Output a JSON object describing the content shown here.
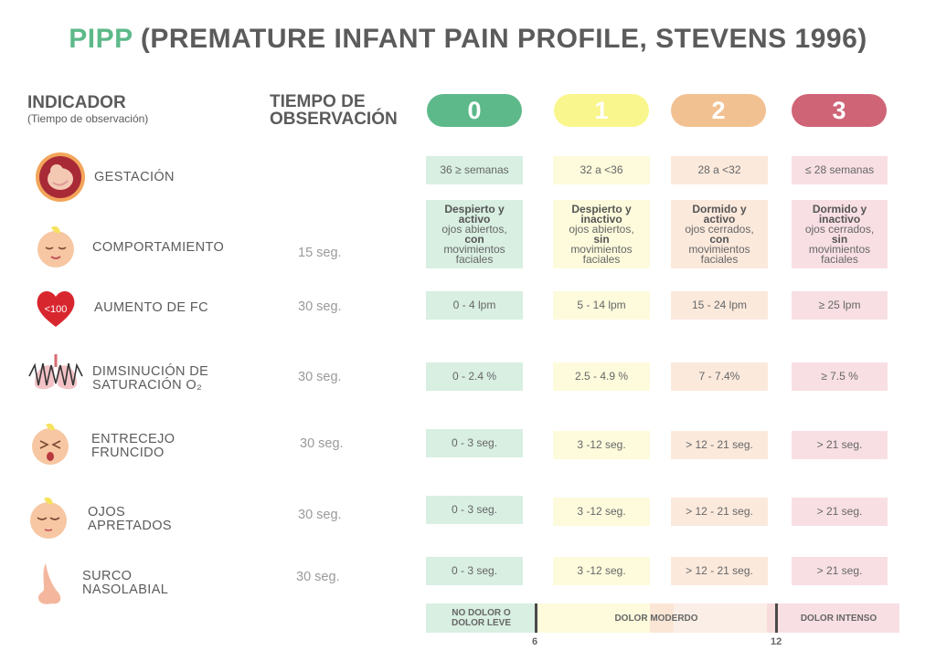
{
  "title": {
    "accent": "PIPP",
    "rest": "(PREMATURE INFANT PAIN PROFILE, STEVENS 1996)"
  },
  "header": {
    "indicator": "INDICADOR",
    "indicator_sub": "(Tiempo de observación)",
    "time_line1": "TIEMPO DE",
    "time_line2": "OBSERVACIÓN",
    "scores": [
      "0",
      "1",
      "2",
      "3"
    ]
  },
  "colors": {
    "score0": "#5db98a",
    "score1": "#f9f68d",
    "score2": "#f2c192",
    "score3": "#cf6477",
    "cell0": "#d8efe2",
    "cell1": "#fdfbdc",
    "cell2": "#fbe9dc",
    "cell3": "#f8dfe4"
  },
  "rows": [
    {
      "icon": "gestation-icon",
      "label1": "GESTACIÓN",
      "label2": "",
      "time": "",
      "cells": [
        "36 ≥ semanas",
        "32 a <36",
        "28 a <32",
        "≤ 28 semanas"
      ]
    },
    {
      "icon": "baby-face-icon",
      "label1": "COMPORTAMIENTO",
      "label2": "",
      "time": "15 seg.",
      "behavior": [
        {
          "b1": "Despierto y",
          "b2": "activo",
          "t1": "ojos abiertos,",
          "k": "con",
          "t2": "movimientos",
          "t3": "faciales"
        },
        {
          "b1": "Despierto y",
          "b2": "inactivo",
          "t1": "ojos abiertos,",
          "k": "sin",
          "t2": "movimientos",
          "t3": "faciales"
        },
        {
          "b1": "Dormido y",
          "b2": "activo",
          "t1": "ojos cerrados,",
          "k": "con",
          "t2": "movimientos",
          "t3": "faciales"
        },
        {
          "b1": "Dormido y",
          "b2": "inactivo",
          "t1": "ojos cerrados,",
          "k": "sin",
          "t2": "movimientos",
          "t3": "faciales"
        }
      ]
    },
    {
      "icon": "heart-icon",
      "icon_text": "<100",
      "label1": "AUMENTO DE FC",
      "label2": "",
      "time": "30 seg.",
      "cells": [
        "0 - 4 lpm",
        "5 - 14 lpm",
        "15 - 24 lpm",
        "≥ 25 lpm"
      ]
    },
    {
      "icon": "lungs-icon",
      "label1": "DIMSINUCIÓN DE",
      "label2": "SATURACIÓN O₂",
      "time": "30 seg.",
      "cells": [
        "0 - 2.4 %",
        "2.5 - 4.9 %",
        "7 - 7.4%",
        "≥  7.5 %"
      ]
    },
    {
      "icon": "crying-face-icon",
      "label1": "ENTRECEJO",
      "label2": "FRUNCIDO",
      "time": "30 seg.",
      "cells": [
        "0 - 3 seg.",
        "3 -12 seg.",
        "> 12 - 21 seg.",
        ">  21 seg."
      ]
    },
    {
      "icon": "closed-eyes-face-icon",
      "label1": "OJOS",
      "label2": "APRETADOS",
      "time": "30 seg.",
      "cells": [
        "0 - 3 seg.",
        "3 -12 seg.",
        "> 12 - 21 seg.",
        ">  21 seg."
      ]
    },
    {
      "icon": "nose-icon",
      "label1": "SURCO",
      "label2": "NASOLABIAL",
      "time": "30 seg.",
      "cells": [
        "0 - 3 seg.",
        "3 -12 seg.",
        "> 12 - 21 seg.",
        ">  21 seg."
      ]
    }
  ],
  "scale": {
    "no_pain_1": "NO DOLOR O",
    "no_pain_2": "DOLOR LEVE",
    "moderate": "DOLOR MODERDO",
    "intense": "DOLOR INTENSO",
    "tick_1": "6",
    "tick_2": "12"
  }
}
